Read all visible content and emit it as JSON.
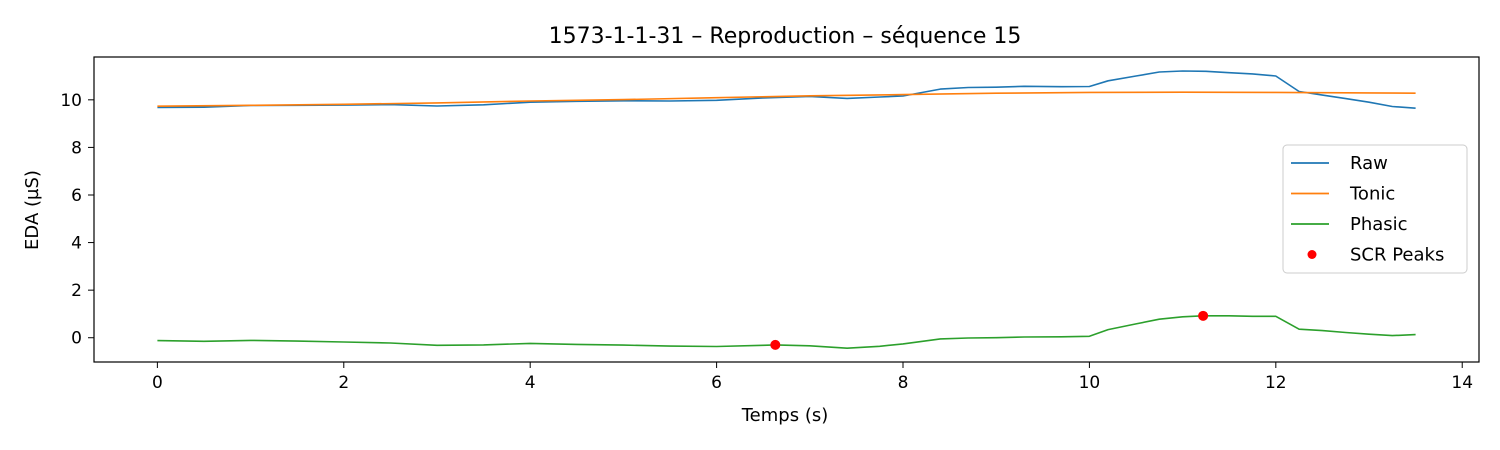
{
  "chart_data": {
    "type": "line",
    "title": "1573-1-1-31 – Reproduction – séquence 15",
    "xlabel": "Temps (s)",
    "ylabel": "EDA (µS)",
    "xlim": [
      -0.68,
      14.18
    ],
    "ylim": [
      -1.02,
      11.8
    ],
    "xticks": [
      0,
      2,
      4,
      6,
      8,
      10,
      12,
      14
    ],
    "yticks": [
      0,
      2,
      4,
      6,
      8,
      10
    ],
    "grid": false,
    "legend_position": "center-right",
    "series": [
      {
        "name": "Raw",
        "kind": "line",
        "color": "#1f77b4",
        "x": [
          0,
          0.5,
          1.0,
          1.5,
          2.0,
          2.5,
          3.0,
          3.5,
          4.0,
          4.5,
          5.0,
          5.5,
          6.0,
          6.5,
          7.0,
          7.4,
          7.75,
          8.0,
          8.4,
          8.7,
          9.0,
          9.3,
          9.7,
          10.0,
          10.2,
          10.5,
          10.75,
          11.0,
          11.25,
          11.5,
          11.75,
          12.0,
          12.25,
          12.5,
          12.75,
          13.0,
          13.25,
          13.5
        ],
        "y": [
          9.68,
          9.69,
          9.76,
          9.77,
          9.78,
          9.8,
          9.74,
          9.79,
          9.9,
          9.94,
          9.96,
          9.95,
          9.98,
          10.08,
          10.14,
          10.06,
          10.12,
          10.16,
          10.45,
          10.52,
          10.53,
          10.57,
          10.55,
          10.56,
          10.8,
          11.0,
          11.17,
          11.21,
          11.2,
          11.14,
          11.09,
          11.0,
          10.35,
          10.2,
          10.05,
          9.9,
          9.72,
          9.65
        ]
      },
      {
        "name": "Tonic",
        "kind": "line",
        "color": "#ff7f0e",
        "x": [
          0,
          1.0,
          2.0,
          3.0,
          4.0,
          5.0,
          6.0,
          7.0,
          8.0,
          9.0,
          10.0,
          11.0,
          12.0,
          13.0,
          13.5
        ],
        "y": [
          9.73,
          9.77,
          9.81,
          9.87,
          9.95,
          10.01,
          10.09,
          10.17,
          10.22,
          10.28,
          10.31,
          10.32,
          10.31,
          10.29,
          10.28
        ]
      },
      {
        "name": "Phasic",
        "kind": "line",
        "color": "#2ca02c",
        "x": [
          0,
          0.5,
          1.0,
          1.5,
          2.0,
          2.5,
          3.0,
          3.5,
          4.0,
          4.5,
          5.0,
          5.5,
          6.0,
          6.5,
          6.63,
          7.0,
          7.4,
          7.75,
          8.0,
          8.4,
          8.7,
          9.0,
          9.3,
          9.7,
          10.0,
          10.2,
          10.5,
          10.75,
          11.0,
          11.22,
          11.5,
          11.75,
          12.0,
          12.25,
          12.5,
          12.75,
          13.0,
          13.25,
          13.5
        ],
        "y": [
          -0.12,
          -0.15,
          -0.11,
          -0.14,
          -0.18,
          -0.22,
          -0.32,
          -0.3,
          -0.24,
          -0.28,
          -0.31,
          -0.35,
          -0.37,
          -0.32,
          -0.3,
          -0.34,
          -0.44,
          -0.36,
          -0.26,
          -0.05,
          -0.01,
          0.0,
          0.03,
          0.04,
          0.06,
          0.34,
          0.58,
          0.78,
          0.88,
          0.92,
          0.92,
          0.9,
          0.9,
          0.36,
          0.3,
          0.22,
          0.15,
          0.09,
          0.13
        ]
      },
      {
        "name": "SCR Peaks",
        "kind": "scatter",
        "color": "#ff0000",
        "x": [
          6.63,
          11.22
        ],
        "y": [
          -0.3,
          0.92
        ]
      }
    ]
  }
}
